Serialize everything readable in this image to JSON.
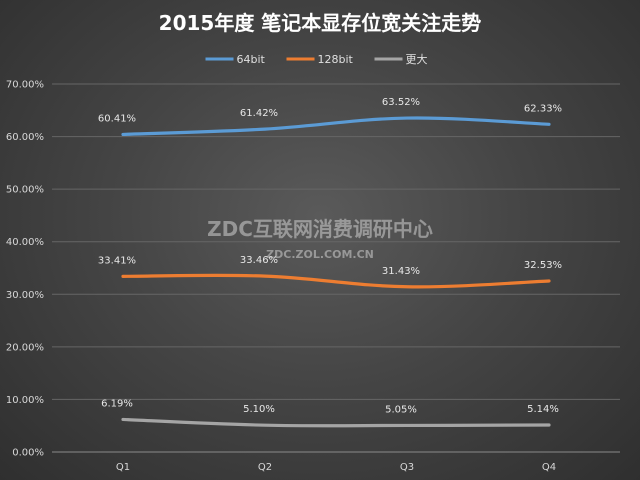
{
  "chart_data": {
    "type": "line",
    "title": "2015年度 笔记本显存位宽关注走势",
    "categories": [
      "Q1",
      "Q2",
      "Q3",
      "Q4"
    ],
    "ylim": [
      0,
      70
    ],
    "yticks": [
      "0.00%",
      "10.00%",
      "20.00%",
      "30.00%",
      "40.00%",
      "50.00%",
      "60.00%",
      "70.00%"
    ],
    "grid": true,
    "legend_position": "top-center",
    "series": [
      {
        "name": "64bit",
        "color": "#5b9bd5",
        "values": [
          60.41,
          61.42,
          63.52,
          62.33
        ],
        "labels": [
          "60.41%",
          "61.42%",
          "63.52%",
          "62.33%"
        ]
      },
      {
        "name": "128bit",
        "color": "#ed7d31",
        "values": [
          33.41,
          33.46,
          31.43,
          32.53
        ],
        "labels": [
          "33.41%",
          "33.46%",
          "31.43%",
          "32.53%"
        ]
      },
      {
        "name": "更大",
        "color": "#a5a5a5",
        "values": [
          6.19,
          5.1,
          5.05,
          5.14
        ],
        "labels": [
          "6.19%",
          "5.10%",
          "5.05%",
          "5.14%"
        ]
      }
    ]
  },
  "watermark": {
    "line1": "ZDC互联网消费调研中心",
    "line2": "ZDC.ZOL.COM.CN"
  }
}
